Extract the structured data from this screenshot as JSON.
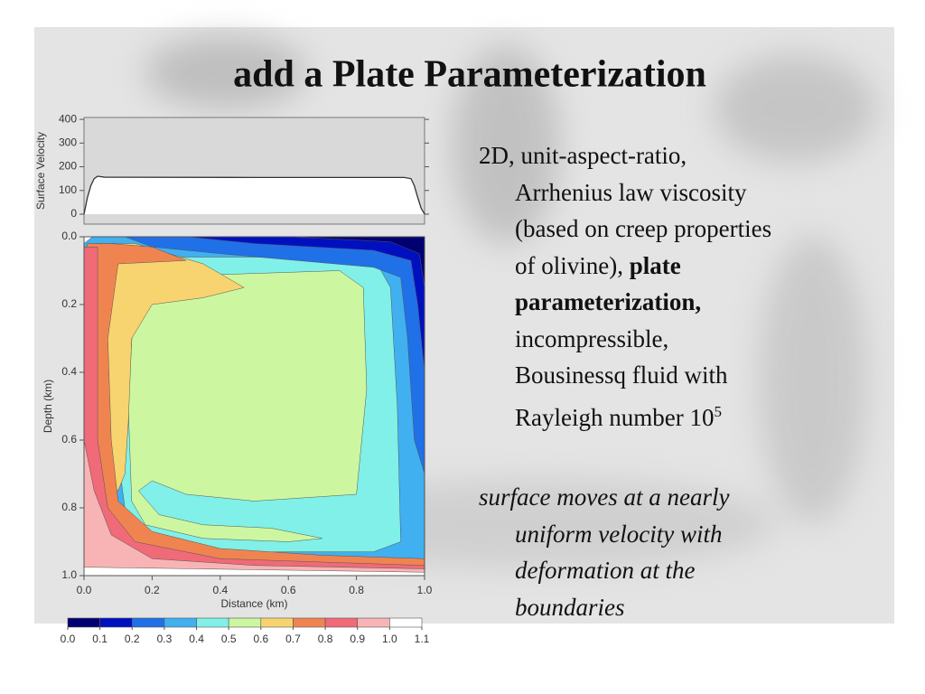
{
  "title": "add a Plate Parameterization",
  "body": {
    "paragraphs": [
      {
        "italic": false,
        "lines": [
          [
            {
              "text": "2D, unit-aspect-ratio,"
            }
          ],
          [
            {
              "text": "Arrhenius law viscosity"
            }
          ],
          [
            {
              "text": "(based on creep properties"
            }
          ],
          [
            {
              "text": "of olivine), "
            },
            {
              "text": "plate",
              "bold": true
            }
          ],
          [
            {
              "text": "parameterization,",
              "bold": true
            }
          ],
          [
            {
              "text": "incompressible,"
            }
          ],
          [
            {
              "text": "Bousinessq fluid with"
            }
          ],
          [
            {
              "text": "Rayleigh number 10"
            },
            {
              "text": "5",
              "sup": true
            }
          ]
        ]
      },
      {
        "italic": true,
        "lines": [
          [
            {
              "text": "surface moves at a nearly"
            }
          ],
          [
            {
              "text": "uniform velocity with"
            }
          ],
          [
            {
              "text": "deformation at the"
            }
          ],
          [
            {
              "text": "boundaries"
            }
          ]
        ]
      }
    ]
  },
  "chart_data": [
    {
      "type": "line",
      "ylabel": "Surface Velocity",
      "color": "#333333",
      "x": [
        0,
        0.01,
        0.02,
        0.03,
        0.04,
        0.06,
        0.5,
        0.94,
        0.96,
        0.97,
        0.98,
        0.99,
        1
      ],
      "values": [
        0,
        70,
        120,
        150,
        160,
        156,
        155,
        155,
        150,
        120,
        70,
        25,
        0
      ],
      "xlim": [
        0,
        1
      ],
      "ylim": [
        -42,
        408
      ],
      "yticks": [
        0,
        100,
        200,
        300,
        400
      ]
    },
    {
      "type": "contour",
      "xlabel": "Distance (km)",
      "ylabel": "Depth (km)",
      "xlim": [
        0,
        1
      ],
      "ylim": [
        1,
        0
      ],
      "xticks": [
        {
          "value": 0,
          "label": "0.0"
        },
        0.2,
        0.4,
        0.6,
        0.8,
        {
          "value": 1,
          "label": "1.0"
        }
      ],
      "yticks": [
        {
          "value": 0,
          "label": "0.0"
        },
        0.2,
        0.4,
        0.6,
        0.8,
        {
          "value": 1,
          "label": "1.0"
        }
      ],
      "colorbar": {
        "ticks": [
          {
            "value": 0,
            "label": "0.0"
          },
          0.1,
          0.2,
          0.3,
          0.4,
          0.5,
          0.6,
          0.7,
          0.8,
          0.9,
          {
            "value": 1,
            "label": "1.0"
          },
          1.1
        ],
        "colors": [
          "#000070",
          "#0010c0",
          "#2070e8",
          "#40b0f0",
          "#80f0e8",
          "#ccf7a0",
          "#f7d470",
          "#f08450",
          "#f06a78",
          "#f8b4b4",
          "#ffffff"
        ]
      }
    }
  ]
}
